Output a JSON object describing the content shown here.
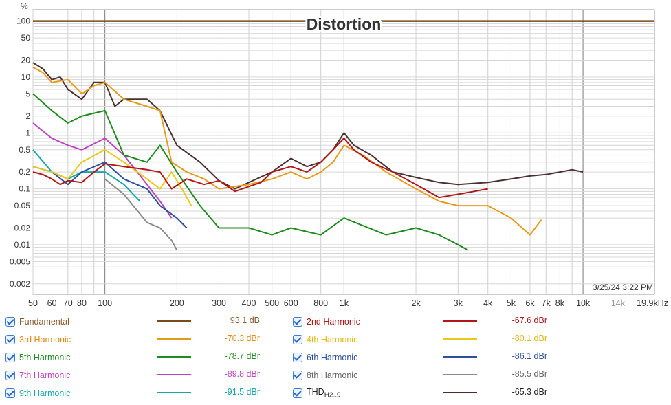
{
  "chart_data": {
    "type": "line",
    "title": "Distortion",
    "ylabel": "%",
    "xunit": "Hz",
    "xscale": "log",
    "yscale": "log",
    "xlim": [
      50,
      19900
    ],
    "ylim": [
      0.0013,
      160
    ],
    "grid": true,
    "xticks": [
      "50",
      "60",
      "70",
      "80",
      "100",
      "200",
      "300",
      "400",
      "500",
      "600",
      "800",
      "1k",
      "2k",
      "3k",
      "4k",
      "5k",
      "6k",
      "7k",
      "8k",
      "10k",
      "14k",
      "19.9kHz"
    ],
    "yticks": [
      "100",
      "50",
      "20",
      "10",
      "5",
      "2",
      "1",
      "0.5",
      "0.2",
      "0.1",
      "0.05",
      "0.02",
      "0.01",
      "0.005",
      "0.002"
    ],
    "timestamp": "3/25/24 3:22 PM",
    "series": [
      {
        "name": "Fundamental",
        "color": "#7a4a1c",
        "value": "93.1 dB",
        "label_color": "#8a5a2c",
        "x": [
          50,
          19900
        ],
        "y": [
          100,
          100
        ]
      },
      {
        "name": "2nd Harmonic",
        "color": "#b01818",
        "value": "-67.6 dBr",
        "label_color": "#b01818",
        "x": [
          50,
          55,
          60,
          65,
          70,
          80,
          90,
          100,
          120,
          150,
          170,
          190,
          220,
          260,
          300,
          350,
          400,
          450,
          500,
          600,
          700,
          800,
          900,
          1000,
          1100,
          1300,
          1600,
          2000,
          2500,
          3000,
          3500,
          4000
        ],
        "y": [
          0.2,
          0.18,
          0.15,
          0.12,
          0.14,
          0.13,
          0.2,
          0.28,
          0.25,
          0.22,
          0.2,
          0.1,
          0.15,
          0.12,
          0.14,
          0.09,
          0.11,
          0.13,
          0.2,
          0.25,
          0.2,
          0.3,
          0.5,
          0.8,
          0.5,
          0.3,
          0.2,
          0.12,
          0.07,
          0.08,
          0.09,
          0.1
        ]
      },
      {
        "name": "3rd Harmonic",
        "color": "#e59b1a",
        "value": "-70.3 dBr",
        "label_color": "#e08a10",
        "x": [
          50,
          55,
          60,
          70,
          80,
          90,
          100,
          120,
          150,
          170,
          190,
          220,
          260,
          300,
          400,
          500,
          600,
          700,
          800,
          900,
          1000,
          1200,
          1500,
          2000,
          2500,
          3000,
          4000,
          5000,
          6000,
          6700
        ],
        "y": [
          15,
          12,
          8,
          9,
          5,
          7,
          8,
          4,
          3,
          2.5,
          0.3,
          0.2,
          0.15,
          0.1,
          0.12,
          0.15,
          0.2,
          0.15,
          0.2,
          0.3,
          0.6,
          0.4,
          0.2,
          0.1,
          0.06,
          0.05,
          0.05,
          0.03,
          0.015,
          0.028
        ]
      },
      {
        "name": "4th Harmonic",
        "color": "#e8c81a",
        "value": "-80.1 dBr",
        "label_color": "#e0b810",
        "x": [
          50,
          60,
          70,
          80,
          100,
          120,
          150,
          170,
          190,
          210,
          230
        ],
        "y": [
          0.25,
          0.2,
          0.15,
          0.3,
          0.5,
          0.3,
          0.15,
          0.1,
          0.2,
          0.1,
          0.05
        ]
      },
      {
        "name": "5th Harmonic",
        "color": "#1f8a1f",
        "value": "-78.7 dBr",
        "label_color": "#1f8a1f",
        "x": [
          50,
          60,
          70,
          80,
          100,
          120,
          150,
          170,
          200,
          250,
          300,
          400,
          500,
          600,
          800,
          1000,
          1500,
          2000,
          2500,
          3000,
          3300
        ],
        "y": [
          5,
          2.5,
          1.5,
          2,
          2.5,
          0.4,
          0.3,
          0.6,
          0.2,
          0.05,
          0.02,
          0.02,
          0.015,
          0.02,
          0.015,
          0.03,
          0.015,
          0.02,
          0.015,
          0.01,
          0.008
        ]
      },
      {
        "name": "6th Harmonic",
        "color": "#2d4f9e",
        "value": "-86.1 dBr",
        "label_color": "#2d4f9e",
        "x": [
          50,
          60,
          70,
          80,
          100,
          120,
          150,
          170,
          200,
          220
        ],
        "y": [
          0.25,
          0.2,
          0.12,
          0.2,
          0.3,
          0.15,
          0.1,
          0.05,
          0.03,
          0.02
        ]
      },
      {
        "name": "7th Harmonic",
        "color": "#c041c0",
        "value": "-89.8 dBr",
        "label_color": "#c041c0",
        "x": [
          50,
          60,
          70,
          80,
          100,
          120,
          150,
          170,
          190
        ],
        "y": [
          1.5,
          0.8,
          0.6,
          0.5,
          0.8,
          0.4,
          0.12,
          0.06,
          0.03
        ]
      },
      {
        "name": "8th Harmonic",
        "color": "#8a8a8a",
        "value": "-85.5 dBr",
        "label_color": "#666666",
        "x": [
          100,
          120,
          150,
          170,
          190,
          200
        ],
        "y": [
          0.15,
          0.08,
          0.025,
          0.02,
          0.012,
          0.008
        ]
      },
      {
        "name": "9th Harmonic",
        "color": "#17a5a5",
        "value": "-91.5 dBr",
        "label_color": "#17a5a5",
        "x": [
          50,
          60,
          70,
          80,
          100,
          120,
          140
        ],
        "y": [
          0.5,
          0.2,
          0.15,
          0.2,
          0.2,
          0.12,
          0.06
        ]
      },
      {
        "name": "THD",
        "sub": "H2..9",
        "color": "#4a3030",
        "value": "-65.3 dBr",
        "label_color": "#222222",
        "x": [
          50,
          55,
          60,
          65,
          70,
          80,
          90,
          100,
          110,
          120,
          150,
          170,
          200,
          250,
          300,
          350,
          400,
          500,
          600,
          700,
          800,
          900,
          1000,
          1100,
          1300,
          1600,
          2000,
          2500,
          3000,
          4000,
          5000,
          6000,
          7000,
          8000,
          9000,
          10000
        ],
        "y": [
          18,
          14,
          9,
          10,
          6,
          4,
          8,
          8,
          3,
          4,
          4,
          2.5,
          0.6,
          0.3,
          0.14,
          0.1,
          0.13,
          0.2,
          0.35,
          0.25,
          0.3,
          0.5,
          1,
          0.6,
          0.4,
          0.2,
          0.16,
          0.13,
          0.12,
          0.13,
          0.15,
          0.17,
          0.18,
          0.2,
          0.22,
          0.2
        ]
      }
    ]
  },
  "legend": {
    "left": [
      {
        "label": "Fundamental",
        "value": "93.1 dB"
      },
      {
        "label": "3rd Harmonic",
        "value": "-70.3 dBr"
      },
      {
        "label": "5th Harmonic",
        "value": "-78.7 dBr"
      },
      {
        "label": "7th Harmonic",
        "value": "-89.8 dBr"
      },
      {
        "label": "9th Harmonic",
        "value": "-91.5 dBr"
      }
    ],
    "right": [
      {
        "label": "2nd Harmonic",
        "value": "-67.6 dBr"
      },
      {
        "label": "4th Harmonic",
        "value": "-80.1 dBr"
      },
      {
        "label": "6th Harmonic",
        "value": "-86.1 dBr"
      },
      {
        "label": "8th Harmonic",
        "value": "-85.5 dBr"
      },
      {
        "label": "THD",
        "sub": "H2..9",
        "value": "-65.3 dBr"
      }
    ]
  }
}
